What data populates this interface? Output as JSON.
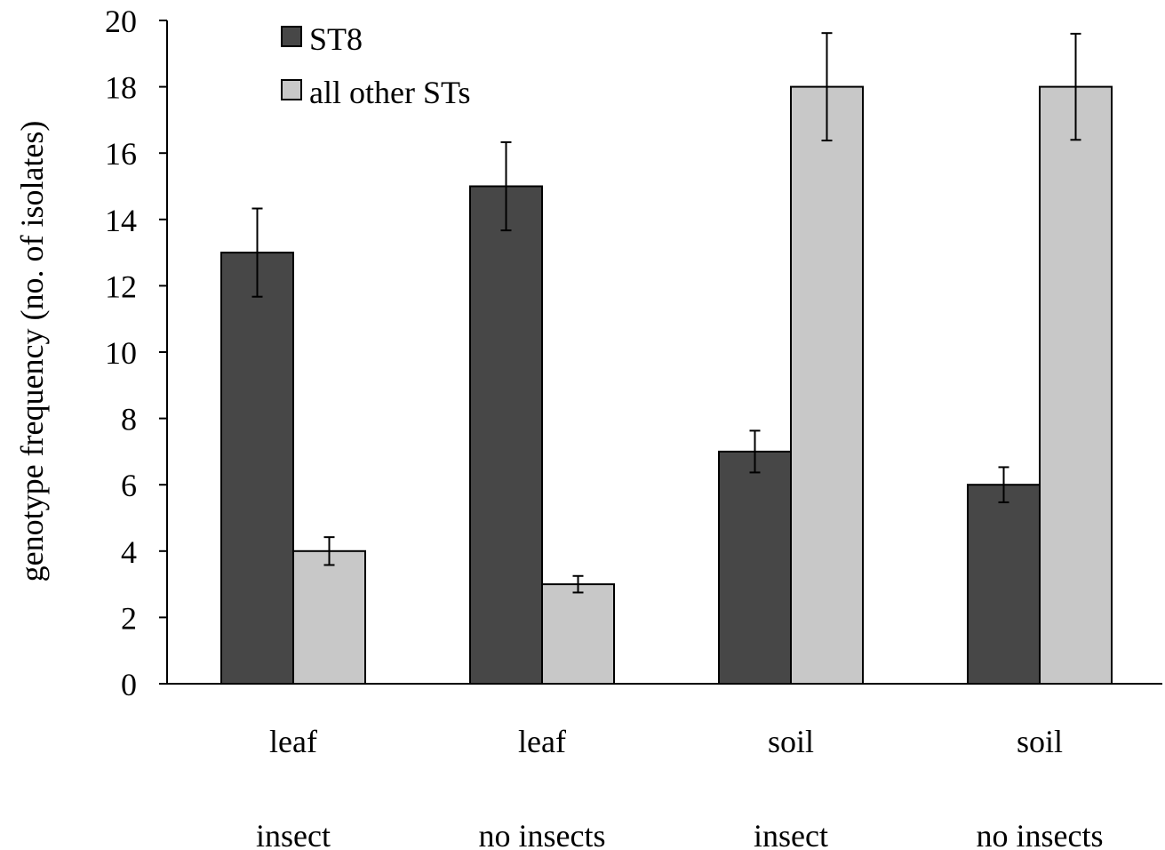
{
  "chart_data": {
    "type": "bar",
    "categories": [
      [
        "leaf",
        "insect"
      ],
      [
        "leaf",
        "no insects"
      ],
      [
        "soil",
        "insect"
      ],
      [
        "soil",
        "no insects"
      ]
    ],
    "series": [
      {
        "name": "ST8",
        "values": [
          13,
          15,
          7,
          6
        ],
        "errors": [
          1.33,
          1.33,
          0.63,
          0.53
        ],
        "color": "#474747"
      },
      {
        "name": "all other STs",
        "values": [
          4,
          3,
          18,
          18
        ],
        "errors": [
          0.42,
          0.25,
          1.62,
          1.6
        ],
        "color": "#c8c8c8"
      }
    ],
    "ylabel": "genotype frequency (no. of isolates)",
    "xlabel": "",
    "ylim": [
      0,
      20
    ],
    "yticks": [
      "0",
      "2",
      "4",
      "6",
      "8",
      "10",
      "12",
      "14",
      "16",
      "18",
      "20"
    ],
    "grid": false,
    "legend_position": "top-left"
  }
}
